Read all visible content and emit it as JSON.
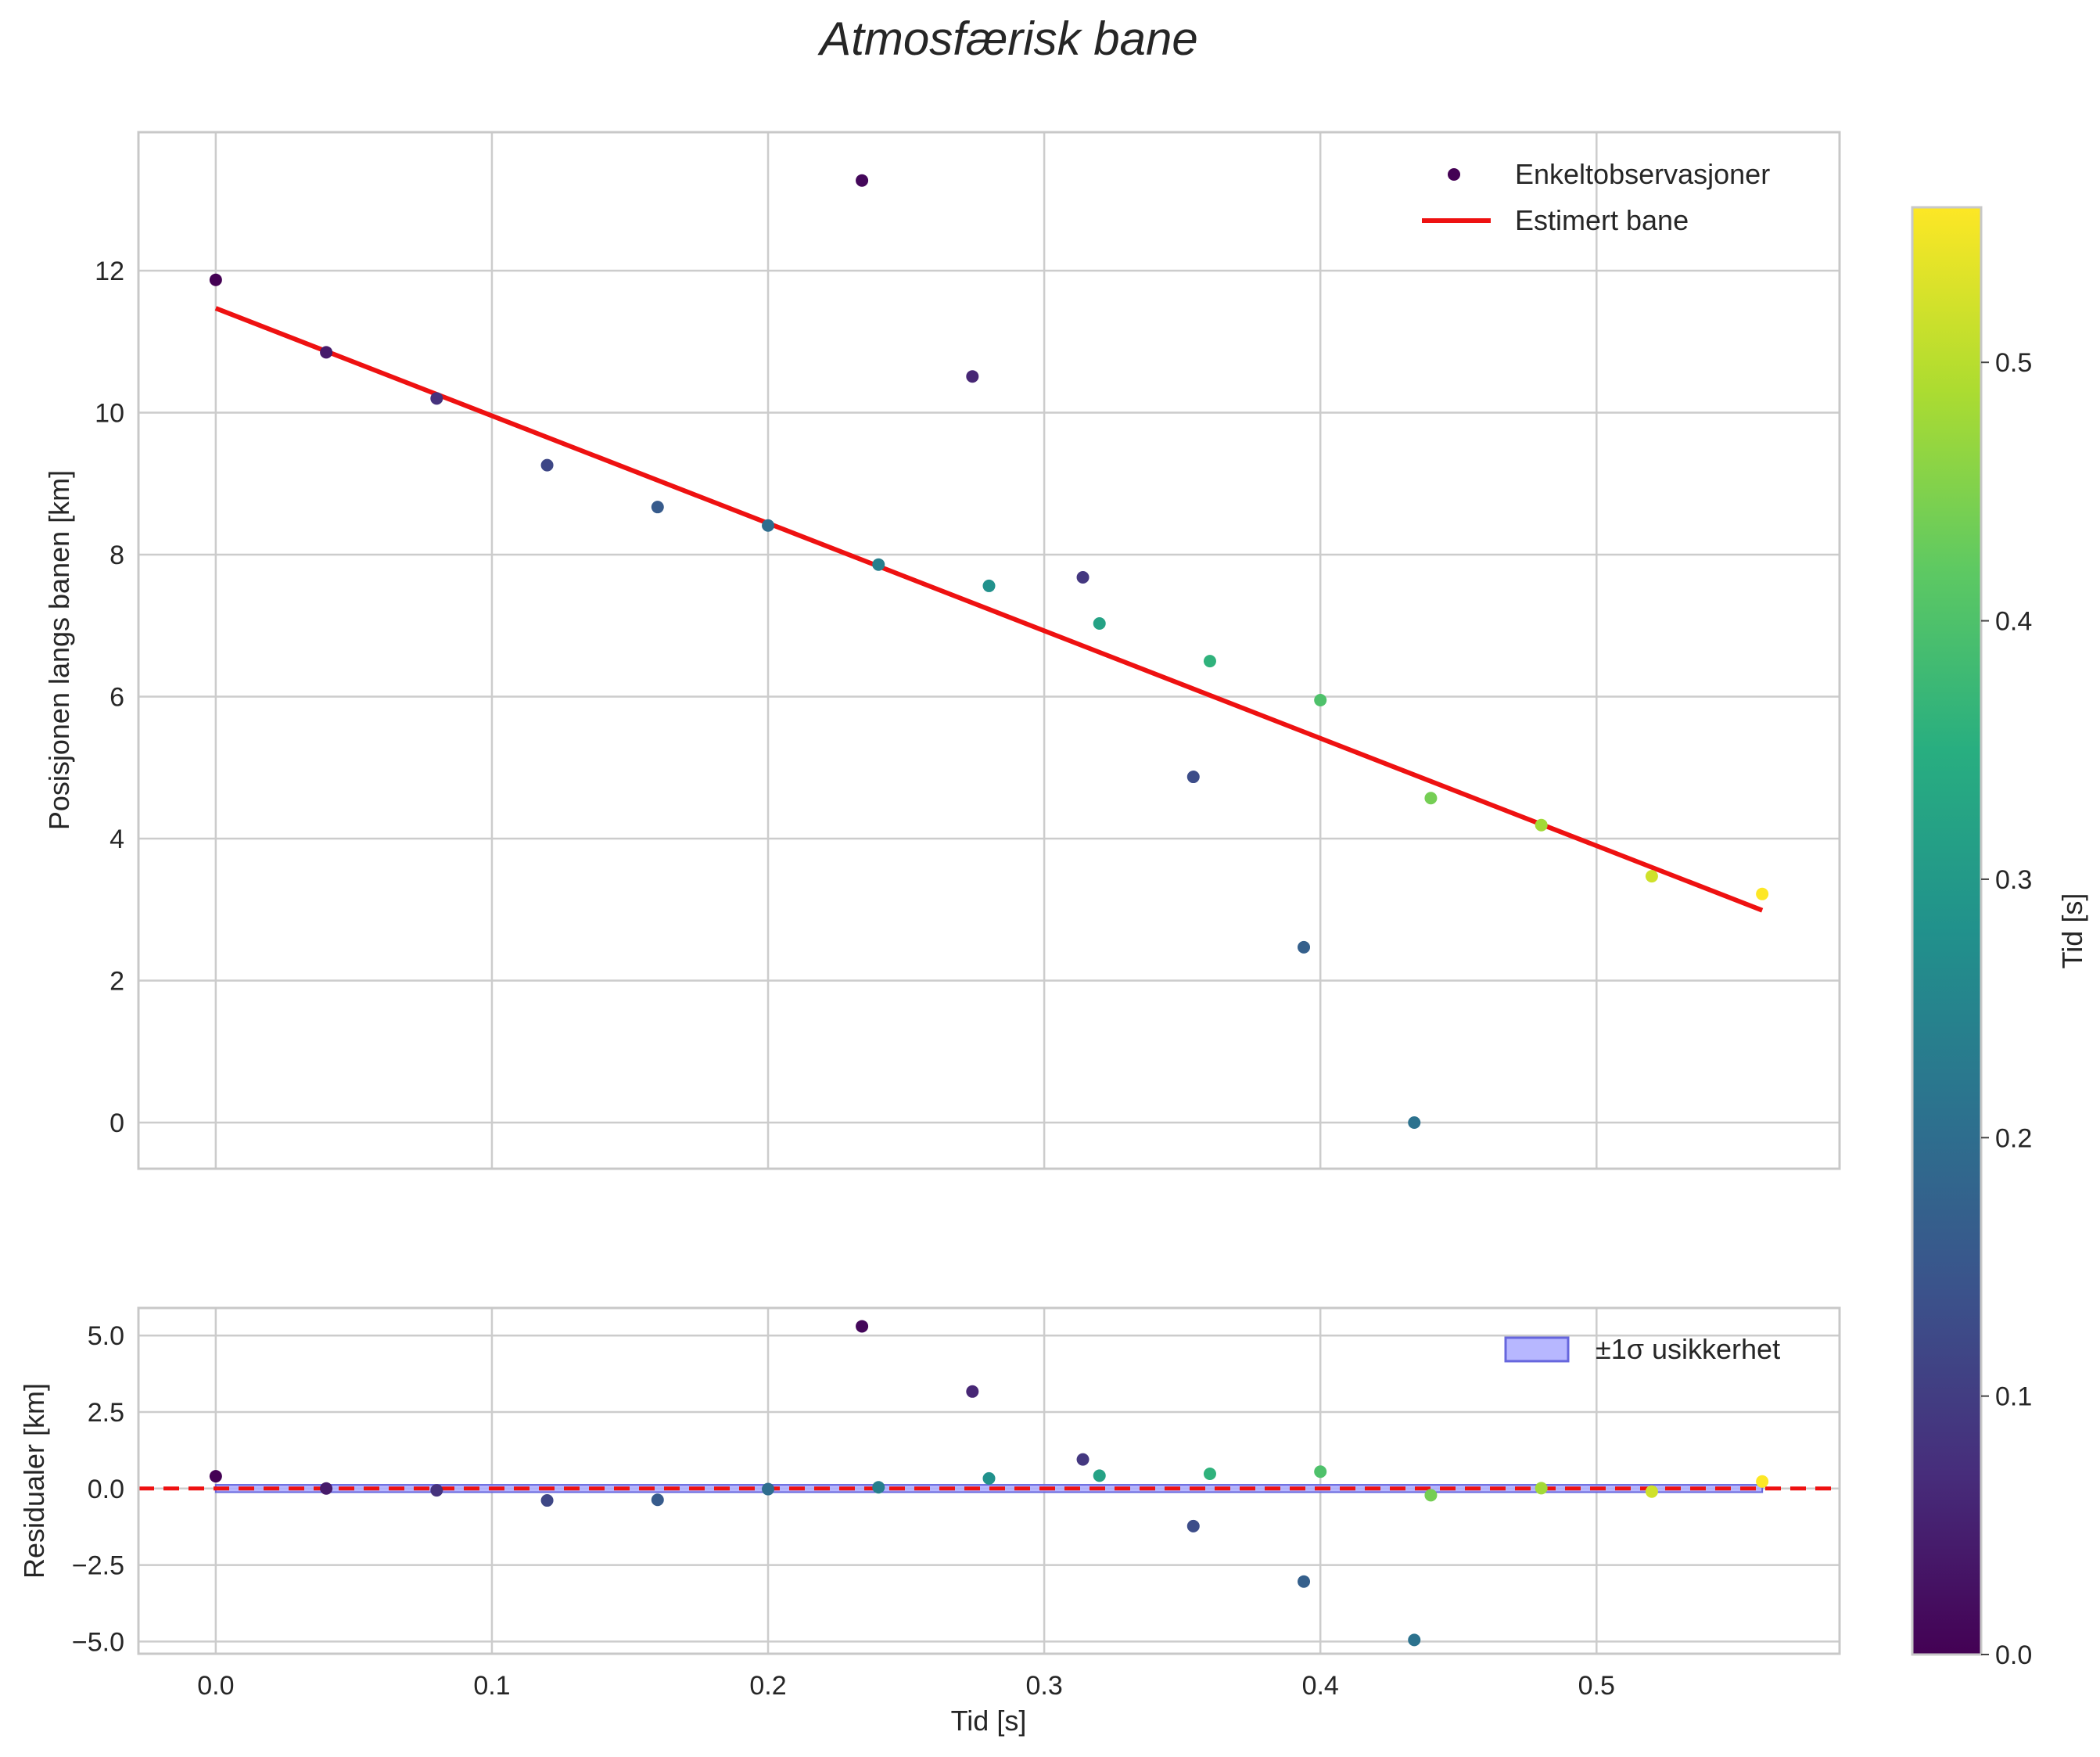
{
  "chart_data": {
    "type": "scatter",
    "title": "Atmosfærisk bane",
    "colors": {
      "fit_line": "#ee1111",
      "band_fill": "#aaaaff",
      "band_edge": "#6666dd",
      "grid": "#cccccc",
      "frame": "#c8c8c8"
    },
    "top_panel": {
      "ylabel": "Posisjonen langs banen [km]",
      "xlim": [
        -0.028,
        0.588
      ],
      "ylim": [
        -0.65,
        13.95
      ],
      "yticks": [
        0,
        2,
        4,
        6,
        8,
        10,
        12
      ],
      "xticks": [
        0.0,
        0.1,
        0.2,
        0.3,
        0.4,
        0.5
      ],
      "grid": true,
      "legend_position": "top-right",
      "series": [
        {
          "name": "Enkeltobservasjoner",
          "kind": "scatter",
          "x": [
            0.0,
            0.04,
            0.08,
            0.12,
            0.16,
            0.2,
            0.234,
            0.24,
            0.274,
            0.28,
            0.314,
            0.32,
            0.354,
            0.36,
            0.394,
            0.4,
            0.434,
            0.44,
            0.48,
            0.52,
            0.56
          ],
          "y": [
            11.87,
            10.85,
            10.2,
            9.26,
            8.67,
            8.41,
            13.27,
            7.86,
            10.51,
            7.56,
            7.68,
            7.03,
            4.87,
            6.5,
            2.47,
            5.95,
            0.0,
            4.57,
            4.19,
            3.47,
            3.22
          ],
          "t": [
            0.0,
            0.04,
            0.08,
            0.12,
            0.16,
            0.2,
            0.01,
            0.24,
            0.06,
            0.28,
            0.09,
            0.32,
            0.13,
            0.36,
            0.17,
            0.4,
            0.21,
            0.44,
            0.48,
            0.52,
            0.56
          ]
        },
        {
          "name": "Estimert bane",
          "kind": "line",
          "x": [
            0.0,
            0.56
          ],
          "y": [
            11.47,
            2.99
          ]
        }
      ]
    },
    "bottom_panel": {
      "ylabel": "Residualer [km]",
      "xlabel": "Tid [s]",
      "xlim": [
        -0.028,
        0.588
      ],
      "ylim": [
        -5.4,
        5.9
      ],
      "yticks": [
        -5.0,
        -2.5,
        0.0,
        2.5,
        5.0
      ],
      "ytick_labels": [
        "−5.0",
        "−2.5",
        "0.0",
        "2.5",
        "5.0"
      ],
      "xticks": [
        0.0,
        0.1,
        0.2,
        0.3,
        0.4,
        0.5
      ],
      "xtick_labels": [
        "0.0",
        "0.1",
        "0.2",
        "0.3",
        "0.4",
        "0.5"
      ],
      "grid": true,
      "legend_position": "top-right",
      "band_name": "±1σ usikkerhet",
      "band_x": [
        0.0,
        0.56
      ],
      "band_halfwidth": 0.12,
      "zero_line": 0,
      "x": [
        0.0,
        0.04,
        0.08,
        0.12,
        0.16,
        0.2,
        0.234,
        0.24,
        0.274,
        0.28,
        0.314,
        0.32,
        0.354,
        0.36,
        0.394,
        0.4,
        0.434,
        0.44,
        0.48,
        0.52,
        0.56
      ],
      "y": [
        0.4,
        0.0,
        -0.06,
        -0.39,
        -0.37,
        -0.02,
        5.3,
        0.04,
        3.17,
        0.33,
        0.95,
        0.42,
        -1.23,
        0.48,
        -3.04,
        0.55,
        -4.95,
        -0.22,
        0.01,
        -0.1,
        0.23
      ],
      "t": [
        0.0,
        0.04,
        0.08,
        0.12,
        0.16,
        0.2,
        0.01,
        0.24,
        0.06,
        0.28,
        0.09,
        0.32,
        0.13,
        0.36,
        0.17,
        0.4,
        0.21,
        0.44,
        0.48,
        0.52,
        0.56
      ]
    },
    "colorbar": {
      "label": "Tid [s]",
      "colormap": "viridis",
      "range": [
        0.0,
        0.56
      ],
      "ticks": [
        0.0,
        0.1,
        0.2,
        0.3,
        0.4,
        0.5
      ],
      "tick_labels": [
        "0.0",
        "0.1",
        "0.2",
        "0.3",
        "0.4",
        "0.5"
      ]
    }
  }
}
